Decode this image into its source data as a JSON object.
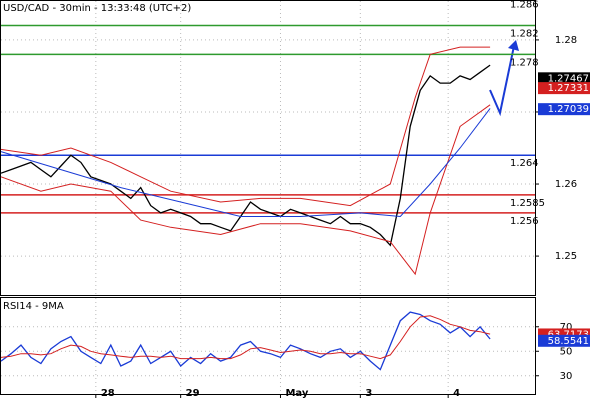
{
  "chart_data": [
    {
      "type": "line",
      "title": "USD/CAD - 30min - 13:33:48 (UTC+2)",
      "xlim": [
        0,
        107
      ],
      "xticks": [
        {
          "value": 19,
          "label": "28"
        },
        {
          "value": 36,
          "label": "29"
        },
        {
          "value": 56,
          "label": "May"
        },
        {
          "value": 72,
          "label": "3"
        },
        {
          "value": 89.6,
          "label": "4"
        }
      ],
      "ylim": [
        1.2446,
        1.2854
      ],
      "yticks": [
        1.28,
        1.27,
        1.26,
        1.25
      ],
      "grid": true,
      "series": [
        {
          "color": "#000000",
          "x": [
            0,
            2,
            4,
            6,
            8,
            10,
            12,
            14,
            16,
            18,
            20,
            22,
            24,
            26,
            28,
            30,
            32,
            34,
            36,
            38,
            40,
            42,
            44,
            46,
            48,
            50,
            52,
            54,
            56,
            58,
            60,
            62,
            64,
            66,
            68,
            70,
            72,
            74,
            76,
            78,
            80,
            82,
            84,
            86,
            88,
            90,
            92,
            94,
            96,
            98
          ],
          "values": [
            1.2615,
            1.262,
            1.2625,
            1.263,
            1.262,
            1.261,
            1.2625,
            1.264,
            1.263,
            1.261,
            1.2605,
            1.26,
            1.259,
            1.258,
            1.2595,
            1.257,
            1.256,
            1.2565,
            1.256,
            1.2555,
            1.2545,
            1.2545,
            1.254,
            1.2535,
            1.2555,
            1.2575,
            1.2565,
            1.256,
            1.2555,
            1.2565,
            1.256,
            1.2555,
            1.255,
            1.2545,
            1.2555,
            1.2545,
            1.2545,
            1.254,
            1.253,
            1.2515,
            1.258,
            1.268,
            1.273,
            1.275,
            1.274,
            1.274,
            1.275,
            1.2745,
            1.2755,
            1.2765
          ]
        },
        {
          "color": "#d42020",
          "x": [
            0,
            8,
            14,
            22,
            28,
            34,
            44,
            52,
            60,
            70,
            78,
            83,
            86,
            92,
            98
          ],
          "values": [
            1.2648,
            1.264,
            1.265,
            1.263,
            1.261,
            1.259,
            1.2575,
            1.258,
            1.258,
            1.257,
            1.26,
            1.272,
            1.278,
            1.279,
            1.279
          ]
        },
        {
          "color": "#d42020",
          "x": [
            0,
            8,
            14,
            22,
            28,
            34,
            44,
            52,
            60,
            70,
            78,
            83,
            86,
            92,
            98
          ],
          "values": [
            1.261,
            1.259,
            1.26,
            1.259,
            1.255,
            1.254,
            1.253,
            1.2545,
            1.2545,
            1.2535,
            1.252,
            1.2475,
            1.256,
            1.268,
            1.271
          ]
        },
        {
          "color": "#1a3bd6",
          "x": [
            0,
            12,
            24,
            36,
            48,
            60,
            72,
            80,
            86,
            92,
            98
          ],
          "values": [
            1.2645,
            1.262,
            1.2595,
            1.2575,
            1.2555,
            1.2555,
            1.256,
            1.2555,
            1.26,
            1.265,
            1.2705
          ]
        }
      ],
      "levels": [
        {
          "value": 1.286,
          "color": "#2e9a2e"
        },
        {
          "value": 1.282,
          "color": "#2e9a2e"
        },
        {
          "value": 1.278,
          "color": "#2e9a2e"
        },
        {
          "value": 1.264,
          "color": "#1a3bd6"
        },
        {
          "value": 1.2585,
          "color": "#d42020"
        },
        {
          "value": 1.256,
          "color": "#d42020"
        }
      ],
      "price_tags": [
        {
          "value": 1.27467,
          "color": "#000000"
        },
        {
          "value": 1.27331,
          "color": "#d42020"
        },
        {
          "value": 1.27039,
          "color": "#1a3bd6"
        }
      ]
    },
    {
      "type": "line",
      "title": "RSI14 - 9MA",
      "xlim": [
        0,
        107
      ],
      "ylim": [
        15.1,
        93.5
      ],
      "yticks": [
        70,
        50,
        30
      ],
      "grid": true,
      "series": [
        {
          "color": "#1a3bd6",
          "x": [
            0,
            2,
            4,
            6,
            8,
            10,
            12,
            14,
            16,
            18,
            20,
            22,
            24,
            26,
            28,
            30,
            32,
            34,
            36,
            38,
            40,
            42,
            44,
            46,
            48,
            50,
            52,
            54,
            56,
            58,
            60,
            62,
            64,
            66,
            68,
            70,
            72,
            74,
            76,
            78,
            80,
            82,
            84,
            86,
            88,
            90,
            92,
            94,
            96,
            98
          ],
          "values": [
            42,
            48,
            55,
            45,
            40,
            52,
            58,
            62,
            50,
            45,
            40,
            55,
            38,
            42,
            55,
            40,
            45,
            50,
            38,
            45,
            40,
            48,
            42,
            45,
            55,
            58,
            50,
            48,
            45,
            55,
            52,
            48,
            45,
            50,
            52,
            45,
            50,
            42,
            35,
            55,
            75,
            82,
            80,
            75,
            72,
            65,
            70,
            62,
            70,
            60
          ]
        },
        {
          "color": "#d42020",
          "x": [
            0,
            2,
            4,
            6,
            8,
            10,
            12,
            14,
            16,
            18,
            20,
            22,
            24,
            26,
            28,
            30,
            32,
            34,
            36,
            38,
            40,
            42,
            44,
            46,
            48,
            50,
            52,
            54,
            56,
            58,
            60,
            62,
            64,
            66,
            68,
            70,
            72,
            74,
            76,
            78,
            80,
            82,
            84,
            86,
            88,
            90,
            92,
            94,
            96,
            98
          ],
          "values": [
            45,
            46,
            48,
            48,
            47,
            48,
            52,
            55,
            54,
            50,
            48,
            47,
            46,
            45,
            46,
            46,
            45,
            46,
            44,
            44,
            44,
            45,
            44,
            44,
            47,
            52,
            53,
            51,
            49,
            50,
            51,
            50,
            48,
            48,
            49,
            48,
            48,
            46,
            44,
            47,
            58,
            70,
            78,
            79,
            76,
            72,
            70,
            67,
            66,
            64
          ]
        }
      ],
      "price_tags": [
        {
          "value": 63.7173,
          "color": "#d42020"
        },
        {
          "value": 58.5541,
          "color": "#1a3bd6"
        }
      ]
    }
  ]
}
